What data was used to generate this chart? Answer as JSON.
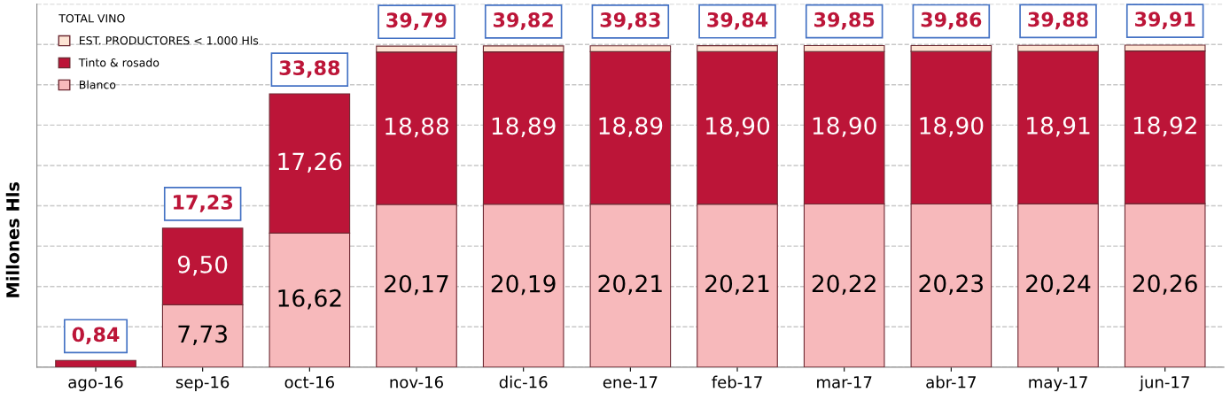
{
  "chart_data": {
    "type": "bar",
    "stacked": true,
    "ylabel": "Millones Hls",
    "legend_title": "TOTAL VINO",
    "categories": [
      "ago-16",
      "sep-16",
      "oct-16",
      "nov-16",
      "dic-16",
      "ene-17",
      "feb-17",
      "mar-17",
      "abr-17",
      "may-17",
      "jun-17"
    ],
    "series": [
      {
        "name": "Blanco",
        "color": "#f7b9bb",
        "values": [
          0,
          7.73,
          16.62,
          20.17,
          20.19,
          20.21,
          20.21,
          20.22,
          20.23,
          20.24,
          20.26
        ],
        "value_labels": [
          null,
          "7,73",
          "16,62",
          "20,17",
          "20,19",
          "20,21",
          "20,21",
          "20,22",
          "20,23",
          "20,24",
          "20,26"
        ]
      },
      {
        "name": "Tinto & rosado",
        "color": "#bc1538",
        "values": [
          0.84,
          9.5,
          17.26,
          18.88,
          18.89,
          18.89,
          18.9,
          18.9,
          18.9,
          18.91,
          18.92
        ],
        "value_labels": [
          null,
          "9,50",
          "17,26",
          "18,88",
          "18,89",
          "18,89",
          "18,90",
          "18,90",
          "18,90",
          "18,91",
          "18,92"
        ]
      },
      {
        "name": "EST. PRODUCTORES < 1.000 Hls",
        "color": "#fde4d4",
        "values": [
          0,
          0,
          0,
          0.74,
          0.74,
          0.73,
          0.73,
          0.73,
          0.73,
          0.73,
          0.73
        ]
      }
    ],
    "totals": [
      "0,84",
      "17,23",
      "33,88",
      "39,79",
      "39,82",
      "39,83",
      "39,84",
      "39,85",
      "39,86",
      "39,88",
      "39,91"
    ],
    "ylim": [
      0,
      45
    ],
    "yticks": [
      {
        "value": 0,
        "label": null
      },
      {
        "value": 5,
        "label": null
      },
      {
        "value": 10,
        "label": null
      },
      {
        "value": 15,
        "label": null
      },
      {
        "value": 20,
        "label": null
      },
      {
        "value": 25,
        "label": null
      },
      {
        "value": 30,
        "label": null
      },
      {
        "value": 35,
        "label": null
      },
      {
        "value": 40,
        "label": null
      },
      {
        "value": 45,
        "label": null
      }
    ],
    "tick_labels": "x",
    "grid": "y",
    "legend": "top left"
  }
}
